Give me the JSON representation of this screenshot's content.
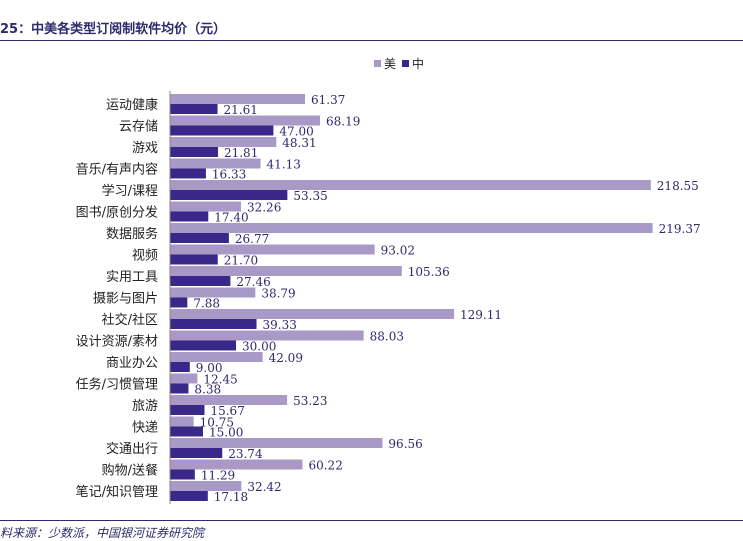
{
  "title": "25：中美各类型订阅制软件均价（元）",
  "source": "料来源：少数派，中国银河证券研究院",
  "colors": {
    "us": "#a899c6",
    "cn": "#3a2889",
    "text": "#2f2a6b"
  },
  "chart_data": {
    "type": "bar",
    "orientation": "horizontal",
    "categories": [
      "运动健康",
      "云存储",
      "游戏",
      "音乐/有声内容",
      "学习/课程",
      "图书/原创分发",
      "数据服务",
      "视频",
      "实用工具",
      "摄影与图片",
      "社交/社区",
      "设计资源/素材",
      "商业办公",
      "任务/习惯管理",
      "旅游",
      "快递",
      "交通出行",
      "购物/送餐",
      "笔记/知识管理"
    ],
    "series": [
      {
        "name": "美",
        "values": [
          61.37,
          68.19,
          48.31,
          41.13,
          218.55,
          32.26,
          219.37,
          93.02,
          105.36,
          38.79,
          129.11,
          88.03,
          42.09,
          12.45,
          53.23,
          10.75,
          96.56,
          60.22,
          32.42
        ]
      },
      {
        "name": "中",
        "values": [
          21.61,
          47.0,
          21.81,
          16.33,
          53.35,
          17.4,
          26.77,
          21.7,
          27.46,
          7.88,
          39.33,
          30.0,
          9.0,
          8.38,
          15.67,
          15.0,
          23.74,
          11.29,
          17.18
        ]
      }
    ],
    "xlim": [
      0,
      225
    ],
    "legend_position": "top",
    "grid": false,
    "data_labels": true
  }
}
